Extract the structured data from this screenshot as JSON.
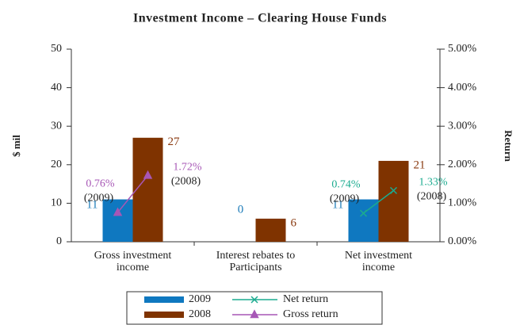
{
  "chart_data": {
    "type": "bar",
    "title": "Investment Income – Clearing House Funds",
    "y_label": "$ mil",
    "y2_label": "Return",
    "categories": [
      "Gross investment income",
      "Interest rebates to Participants",
      "Net investment income"
    ],
    "series": [
      {
        "name": "2009",
        "color": "#0f78c0",
        "label_color": "#1a7ab8",
        "values": [
          11,
          0,
          11
        ]
      },
      {
        "name": "2008",
        "color": "#7f3300",
        "label_color": "#8a3a10",
        "values": [
          27,
          6,
          21
        ]
      }
    ],
    "line_series": [
      {
        "name": "Net return",
        "color": "#1bab8f",
        "marker": "x",
        "axis": "y2",
        "point_labels": [
          "(2009)",
          "(2008)"
        ],
        "values": [
          null,
          null,
          [
            0.74,
            1.33
          ]
        ],
        "value_labels": [
          null,
          null,
          [
            "0.74%",
            "1.33%"
          ]
        ]
      },
      {
        "name": "Gross return",
        "color": "#a757b6",
        "marker": "triangle",
        "axis": "y2",
        "point_labels": [
          "(2009)",
          "(2008)"
        ],
        "values": [
          [
            0.76,
            1.72
          ],
          null,
          null
        ],
        "value_labels": [
          [
            "0.76%",
            "1.72%"
          ],
          null,
          null
        ]
      }
    ],
    "ylim": [
      0,
      50
    ],
    "yticks": [
      0,
      10,
      20,
      30,
      40,
      50
    ],
    "y2lim": [
      0,
      5
    ],
    "y2ticks": [
      {
        "value": 0,
        "label": "0.00%"
      },
      {
        "value": 1,
        "label": "1.00%"
      },
      {
        "value": 2,
        "label": "2.00%"
      },
      {
        "value": 3,
        "label": "3.00%"
      },
      {
        "value": 4,
        "label": "4.00%"
      },
      {
        "value": 5,
        "label": "5.00%"
      }
    ],
    "legend": "bottom"
  }
}
